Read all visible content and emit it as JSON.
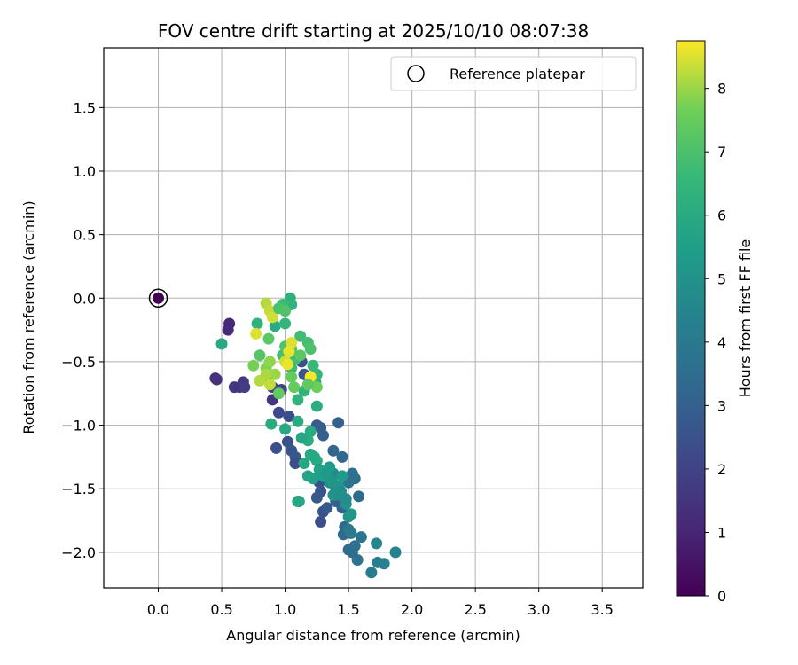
{
  "chart_data": {
    "type": "scatter",
    "title": "FOV centre drift starting at 2025/10/10 08:07:38",
    "xlabel": "Angular distance from reference (arcmin)",
    "ylabel": "Rotation from reference (arcmin)",
    "colorbar_label": "Hours from first FF file",
    "xlim": [
      -0.43,
      3.82
    ],
    "ylim": [
      -2.28,
      1.97
    ],
    "x_ticks": [
      "0.0",
      "0.5",
      "1.0",
      "1.5",
      "2.0",
      "2.5",
      "3.0",
      "3.5"
    ],
    "x_tick_values": [
      0.0,
      0.5,
      1.0,
      1.5,
      2.0,
      2.5,
      3.0,
      3.5
    ],
    "y_ticks": [
      "1.5",
      "1.0",
      "0.5",
      "0.0",
      "−0.5",
      "−1.0",
      "−1.5",
      "−2.0"
    ],
    "y_tick_values": [
      1.5,
      1.0,
      0.5,
      0.0,
      -0.5,
      -1.0,
      -1.5,
      -2.0
    ],
    "colorbar_ticks": [
      "0",
      "1",
      "2",
      "3",
      "4",
      "5",
      "6",
      "7",
      "8"
    ],
    "colorbar_tick_values": [
      0,
      1,
      2,
      3,
      4,
      5,
      6,
      7,
      8
    ],
    "colorbar_range": [
      0,
      8.75
    ],
    "colormap": "viridis",
    "grid": true,
    "legend_position": "top-right",
    "reference": {
      "label": "Reference platepar",
      "x": 0.0,
      "y": 0.0,
      "hours": 0.0
    },
    "points": [
      [
        0.56,
        -0.2,
        1.1
      ],
      [
        0.55,
        -0.25,
        1.2
      ],
      [
        0.45,
        -0.63,
        1.3
      ],
      [
        0.46,
        -0.64,
        1.4
      ],
      [
        0.6,
        -0.7,
        1.6
      ],
      [
        0.64,
        -0.7,
        1.5
      ],
      [
        0.67,
        -0.66,
        1.7
      ],
      [
        0.68,
        -0.7,
        1.8
      ],
      [
        0.85,
        -0.63,
        1.9
      ],
      [
        0.9,
        -0.7,
        2.0
      ],
      [
        0.9,
        -0.8,
        1.6
      ],
      [
        0.97,
        -0.72,
        2.1
      ],
      [
        0.95,
        -0.9,
        2.2
      ],
      [
        1.03,
        -0.93,
        2.3
      ],
      [
        0.93,
        -1.18,
        2.4
      ],
      [
        1.02,
        -1.13,
        2.5
      ],
      [
        1.05,
        -1.2,
        2.6
      ],
      [
        1.08,
        -1.25,
        2.7
      ],
      [
        1.08,
        -1.3,
        2.3
      ],
      [
        1.13,
        -0.5,
        2.4
      ],
      [
        1.15,
        -0.6,
        2.6
      ],
      [
        1.25,
        -1.0,
        2.8
      ],
      [
        1.28,
        -1.02,
        2.9
      ],
      [
        1.3,
        -1.08,
        3.0
      ],
      [
        1.42,
        -0.98,
        3.1
      ],
      [
        1.38,
        -1.2,
        3.2
      ],
      [
        1.45,
        -1.25,
        3.3
      ],
      [
        1.27,
        -1.45,
        2.5
      ],
      [
        1.28,
        -1.52,
        2.6
      ],
      [
        1.25,
        -1.57,
        2.7
      ],
      [
        1.3,
        -1.68,
        2.5
      ],
      [
        1.33,
        -1.65,
        2.8
      ],
      [
        1.28,
        -1.76,
        2.4
      ],
      [
        1.4,
        -1.6,
        3.0
      ],
      [
        1.45,
        -1.65,
        3.1
      ],
      [
        1.47,
        -1.8,
        3.2
      ],
      [
        1.46,
        -1.86,
        3.3
      ],
      [
        1.5,
        -1.98,
        3.4
      ],
      [
        1.53,
        -2.0,
        3.5
      ],
      [
        1.55,
        -1.95,
        3.6
      ],
      [
        1.57,
        -2.06,
        3.7
      ],
      [
        1.6,
        -1.88,
        3.8
      ],
      [
        1.58,
        -1.56,
        3.4
      ],
      [
        1.55,
        -1.42,
        3.5
      ],
      [
        1.53,
        -1.38,
        3.6
      ],
      [
        1.5,
        -1.45,
        3.7
      ],
      [
        1.5,
        -1.82,
        3.9
      ],
      [
        1.52,
        -1.85,
        4.0
      ],
      [
        1.68,
        -2.16,
        4.1
      ],
      [
        1.73,
        -2.08,
        4.2
      ],
      [
        1.78,
        -2.09,
        4.3
      ],
      [
        1.87,
        -2.0,
        4.4
      ],
      [
        1.72,
        -1.93,
        4.5
      ],
      [
        1.4,
        -1.5,
        4.6
      ],
      [
        1.38,
        -1.38,
        4.7
      ],
      [
        1.35,
        -1.45,
        4.8
      ],
      [
        1.43,
        -1.55,
        4.9
      ],
      [
        1.48,
        -1.62,
        5.0
      ],
      [
        1.5,
        -1.72,
        5.1
      ],
      [
        1.52,
        -1.7,
        5.2
      ],
      [
        1.45,
        -1.4,
        5.3
      ],
      [
        1.35,
        -1.33,
        5.4
      ],
      [
        1.28,
        -1.37,
        5.5
      ],
      [
        1.22,
        -1.42,
        5.6
      ],
      [
        1.18,
        -1.4,
        5.7
      ],
      [
        1.15,
        -1.3,
        5.8
      ],
      [
        1.2,
        -1.23,
        5.9
      ],
      [
        1.25,
        -1.28,
        6.0
      ],
      [
        1.1,
        -1.6,
        5.6
      ],
      [
        1.11,
        -1.6,
        5.8
      ],
      [
        1.0,
        -1.03,
        5.9
      ],
      [
        0.89,
        -0.99,
        6.0
      ],
      [
        1.1,
        -0.97,
        6.0
      ],
      [
        1.25,
        -0.85,
        6.1
      ],
      [
        1.24,
        -0.66,
        6.2
      ],
      [
        1.15,
        -0.73,
        6.3
      ],
      [
        1.1,
        -0.8,
        6.4
      ],
      [
        1.25,
        -0.6,
        6.5
      ],
      [
        1.22,
        -0.53,
        6.6
      ],
      [
        1.05,
        -0.55,
        6.7
      ],
      [
        1.08,
        -0.48,
        6.8
      ],
      [
        0.98,
        -0.45,
        6.9
      ],
      [
        0.5,
        -0.36,
        5.9
      ],
      [
        0.92,
        -0.22,
        6.0
      ],
      [
        0.78,
        -0.2,
        6.3
      ],
      [
        1.0,
        -0.2,
        6.5
      ],
      [
        1.04,
        0.0,
        6.2
      ],
      [
        1.05,
        -0.05,
        6.4
      ],
      [
        0.98,
        -0.05,
        6.7
      ],
      [
        1.12,
        -0.3,
        6.8
      ],
      [
        1.18,
        -0.35,
        6.9
      ],
      [
        1.2,
        -0.4,
        7.0
      ],
      [
        1.0,
        -0.38,
        7.1
      ],
      [
        1.05,
        -0.4,
        7.2
      ],
      [
        0.87,
        -0.32,
        7.3
      ],
      [
        0.95,
        -0.75,
        7.4
      ],
      [
        1.05,
        -0.62,
        7.5
      ],
      [
        1.25,
        -0.7,
        7.6
      ],
      [
        0.75,
        -0.53,
        7.7
      ],
      [
        0.85,
        -0.55,
        7.8
      ],
      [
        0.88,
        -0.5,
        7.9
      ],
      [
        0.92,
        -0.6,
        8.0
      ],
      [
        0.85,
        -0.6,
        8.1
      ],
      [
        0.8,
        -0.65,
        8.2
      ],
      [
        0.88,
        -0.68,
        8.3
      ],
      [
        1.0,
        -0.5,
        8.4
      ],
      [
        1.05,
        -0.35,
        8.5
      ],
      [
        1.03,
        -0.42,
        8.6
      ],
      [
        0.85,
        -0.04,
        8.2
      ],
      [
        0.88,
        -0.1,
        8.3
      ],
      [
        0.9,
        -0.15,
        8.4
      ],
      [
        0.77,
        -0.28,
        8.5
      ],
      [
        1.02,
        -0.52,
        8.6
      ],
      [
        1.2,
        -0.62,
        8.7
      ],
      [
        0.95,
        -0.08,
        7.0
      ],
      [
        1.0,
        -0.1,
        7.1
      ],
      [
        0.8,
        -0.45,
        7.2
      ],
      [
        1.12,
        -0.45,
        7.3
      ],
      [
        1.18,
        -0.68,
        7.4
      ],
      [
        1.07,
        -0.7,
        7.5
      ],
      [
        1.2,
        -1.05,
        6.0
      ],
      [
        1.18,
        -1.12,
        6.1
      ],
      [
        1.13,
        -1.1,
        5.8
      ],
      [
        1.23,
        -1.25,
        5.9
      ],
      [
        1.27,
        -1.35,
        5.7
      ],
      [
        1.3,
        -1.4,
        5.5
      ],
      [
        1.32,
        -1.38,
        5.3
      ],
      [
        1.37,
        -1.44,
        5.2
      ],
      [
        1.42,
        -1.48,
        5.1
      ],
      [
        1.38,
        -1.55,
        5.0
      ],
      [
        1.44,
        -1.52,
        4.9
      ],
      [
        1.48,
        -1.58,
        4.8
      ]
    ]
  }
}
